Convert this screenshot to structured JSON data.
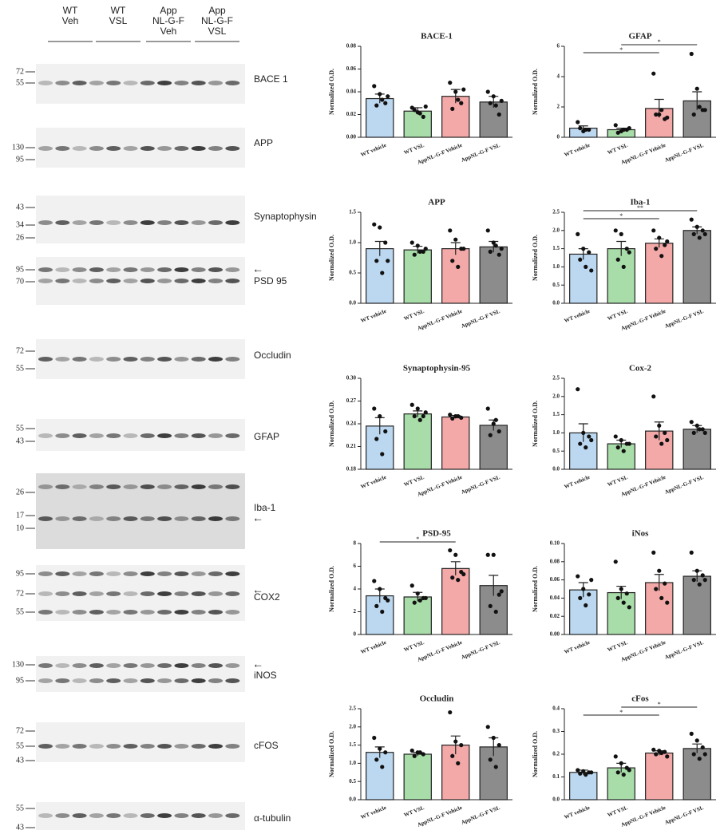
{
  "blots": {
    "groups": [
      {
        "lines": [
          "WT",
          "Veh"
        ]
      },
      {
        "lines": [
          "WT",
          "VSL"
        ]
      },
      {
        "lines": [
          "App",
          "NL-G-F",
          "Veh"
        ]
      },
      {
        "lines": [
          "App",
          "NL-G-F",
          "VSL"
        ]
      }
    ],
    "panels": [
      {
        "label": "BACE 1",
        "markers": [
          "72",
          "55"
        ]
      },
      {
        "label": "APP",
        "markers": [
          "130",
          "95"
        ]
      },
      {
        "label": "Synaptophysin",
        "markers": [
          "43",
          "34",
          "26"
        ]
      },
      {
        "label": "PSD 95",
        "markers": [
          "95",
          "70"
        ]
      },
      {
        "label": "Occludin",
        "markers": [
          "72",
          "55"
        ]
      },
      {
        "label": "GFAP",
        "markers": [
          "55",
          "43"
        ]
      },
      {
        "label": "Iba-1",
        "markers": [
          "26",
          "17",
          "10"
        ]
      },
      {
        "label": "COX2",
        "markers": [
          "95",
          "72",
          "55"
        ]
      },
      {
        "label": "iNOS",
        "markers": [
          "130",
          "95"
        ]
      },
      {
        "label": "cFOS",
        "markers": [
          "72",
          "55",
          "43"
        ]
      },
      {
        "label": "α-tubulin",
        "markers": [
          "55",
          "43"
        ]
      }
    ]
  },
  "chart_data": [
    {
      "type": "bar",
      "title": "BACE-1",
      "y_label": "Normalized O.D.",
      "categories": [
        "WT vehicle",
        "WT VSL",
        "AppNL-G-F Vehicle",
        "AppNL-G-F VSL"
      ],
      "colors": [
        "#bcd8f0",
        "#a8dca8",
        "#f4a9a9",
        "#8c8c8c"
      ],
      "values": [
        0.034,
        0.023,
        0.036,
        0.031
      ],
      "errors": [
        0.004,
        0.003,
        0.006,
        0.005
      ],
      "points": [
        [
          0.045,
          0.038,
          0.03,
          0.028,
          0.033,
          0.036
        ],
        [
          0.026,
          0.022,
          0.018,
          0.024,
          0.021,
          0.027
        ],
        [
          0.048,
          0.04,
          0.03,
          0.025,
          0.033,
          0.042
        ],
        [
          0.04,
          0.036,
          0.02,
          0.03,
          0.028,
          0.032
        ]
      ],
      "ylim": [
        0,
        0.08
      ],
      "yticks": [
        {
          "value": 0,
          "label": "0.00"
        },
        0.02,
        0.04,
        0.06,
        0.08
      ],
      "significance": []
    },
    {
      "type": "bar",
      "title": "GFAP",
      "y_label": "Normalized O.D.",
      "categories": [
        "WT vehicle",
        "WT VSL",
        "AppNL-G-F Vehicle",
        "AppNL-G-F VSL"
      ],
      "colors": [
        "#bcd8f0",
        "#a8dca8",
        "#f4a9a9",
        "#8c8c8c"
      ],
      "values": [
        0.6,
        0.5,
        1.9,
        2.4
      ],
      "errors": [
        0.15,
        0.1,
        0.6,
        0.6
      ],
      "points": [
        [
          1.0,
          0.4,
          0.5,
          0.6,
          0.5
        ],
        [
          0.8,
          0.4,
          0.5,
          0.3,
          0.5,
          0.6
        ],
        [
          4.2,
          1.5,
          1.2,
          1.5,
          1.8,
          1.3
        ],
        [
          5.5,
          3.2,
          1.8,
          1.5,
          2.0,
          1.8
        ]
      ],
      "ylim": [
        0,
        6
      ],
      "yticks": [
        0,
        2,
        4,
        6
      ],
      "significance": [
        {
          "from": 1,
          "to": 3,
          "label": "*"
        },
        {
          "from": 0,
          "to": 2,
          "label": "*"
        }
      ]
    },
    {
      "type": "bar",
      "title": "APP",
      "y_label": "Normalized O.D.",
      "categories": [
        "WT vehicle",
        "WT VSL",
        "AppNL-G-F Vehicle",
        "AppNL-G-F VSL"
      ],
      "colors": [
        "#bcd8f0",
        "#a8dca8",
        "#f4a9a9",
        "#8c8c8c"
      ],
      "values": [
        0.9,
        0.88,
        0.9,
        0.93
      ],
      "errors": [
        0.12,
        0.06,
        0.1,
        0.09
      ],
      "points": [
        [
          1.3,
          1.25,
          1.0,
          0.7,
          0.5,
          0.7
        ],
        [
          1.0,
          0.95,
          0.85,
          0.8,
          0.85,
          0.9
        ],
        [
          1.2,
          1.05,
          0.9,
          0.7,
          0.6,
          0.9
        ],
        [
          1.2,
          1.0,
          0.8,
          0.85,
          0.95,
          0.9
        ]
      ],
      "ylim": [
        0,
        1.5
      ],
      "yticks": [
        {
          "value": 0,
          "label": "0.0"
        },
        0.5,
        {
          "value": 1,
          "label": "1.0"
        },
        1.5
      ],
      "significance": []
    },
    {
      "type": "bar",
      "title": "Iba-1",
      "y_label": "Normalized O.D.",
      "categories": [
        "WT vehicle",
        "WT VSL",
        "AppNL-G-F Vehicle",
        "AppNL-G-F VSL"
      ],
      "colors": [
        "#bcd8f0",
        "#a8dca8",
        "#f4a9a9",
        "#8c8c8c"
      ],
      "values": [
        1.35,
        1.5,
        1.65,
        2.0
      ],
      "errors": [
        0.15,
        0.2,
        0.12,
        0.1
      ],
      "points": [
        [
          1.9,
          1.5,
          1.4,
          1.2,
          1.0,
          0.9
        ],
        [
          2.0,
          1.9,
          1.5,
          1.2,
          1.0,
          1.4
        ],
        [
          2.0,
          1.8,
          1.6,
          1.5,
          1.3,
          1.7
        ],
        [
          2.3,
          2.1,
          2.0,
          1.9,
          1.8,
          1.9
        ]
      ],
      "ylim": [
        0,
        2.5
      ],
      "yticks": [
        {
          "value": 0,
          "label": "0.0"
        },
        0.5,
        {
          "value": 1,
          "label": "1.0"
        },
        1.5,
        {
          "value": 2,
          "label": "2.0"
        },
        2.5
      ],
      "significance": [
        {
          "from": 0,
          "to": 3,
          "label": "**"
        },
        {
          "from": 0,
          "to": 2,
          "label": "*"
        }
      ]
    },
    {
      "type": "bar",
      "title": "Synaptophysin-95",
      "y_label": "Normalized O.D.",
      "categories": [
        "WT vehicle",
        "WT VSL",
        "AppNL-G-F Vehicle",
        "AppNL-G-F VSL"
      ],
      "colors": [
        "#bcd8f0",
        "#a8dca8",
        "#f4a9a9",
        "#8c8c8c"
      ],
      "values": [
        0.237,
        0.253,
        0.249,
        0.238
      ],
      "errors": [
        0.011,
        0.004,
        0.002,
        0.007
      ],
      "points": [
        [
          0.26,
          0.25,
          0.23,
          0.22,
          0.2
        ],
        [
          0.265,
          0.26,
          0.25,
          0.25,
          0.245,
          0.255
        ],
        [
          0.252,
          0.25,
          0.248,
          0.247,
          0.25
        ],
        [
          0.26,
          0.24,
          0.23,
          0.225,
          0.245
        ]
      ],
      "ylim": [
        0.18,
        0.3
      ],
      "yticks": [
        0.18,
        0.21,
        0.24,
        0.27,
        {
          "value": 0.3,
          "label": "0.30"
        }
      ],
      "significance": []
    },
    {
      "type": "bar",
      "title": "Cox-2",
      "y_label": "Normalized O.D.",
      "categories": [
        "WT vehicle",
        "WT VSL",
        "AppNL-G-F Vehicle",
        "AppNL-G-F VSL"
      ],
      "colors": [
        "#bcd8f0",
        "#a8dca8",
        "#f4a9a9",
        "#8c8c8c"
      ],
      "values": [
        1.0,
        0.7,
        1.05,
        1.1
      ],
      "errors": [
        0.25,
        0.1,
        0.25,
        0.1
      ],
      "points": [
        [
          2.2,
          1.0,
          0.9,
          0.7,
          0.6,
          0.8
        ],
        [
          0.9,
          0.8,
          0.7,
          0.6,
          0.5,
          0.7
        ],
        [
          2.0,
          1.2,
          1.0,
          0.9,
          0.7,
          0.8
        ],
        [
          1.3,
          1.2,
          1.1,
          1.0,
          1.1,
          1.0
        ]
      ],
      "ylim": [
        0,
        2.5
      ],
      "yticks": [
        {
          "value": 0,
          "label": "0.0"
        },
        0.5,
        {
          "value": 1,
          "label": "1.0"
        },
        1.5,
        {
          "value": 2,
          "label": "2.0"
        },
        2.5
      ],
      "significance": []
    },
    {
      "type": "bar",
      "title": "PSD-95",
      "y_label": "Normalized O.D.",
      "categories": [
        "WT vehicle",
        "WT VSL",
        "AppNL-G-F Vehicle",
        "AppNL-G-F VSL"
      ],
      "colors": [
        "#bcd8f0",
        "#a8dca8",
        "#f4a9a9",
        "#8c8c8c"
      ],
      "values": [
        3.4,
        3.3,
        5.8,
        4.3
      ],
      "errors": [
        0.6,
        0.4,
        0.6,
        0.9
      ],
      "points": [
        [
          4.7,
          4.0,
          3.2,
          2.5,
          2.0,
          3.0
        ],
        [
          4.3,
          3.6,
          3.2,
          2.8,
          3.0,
          3.2
        ],
        [
          7.4,
          7.0,
          5.5,
          5.0,
          4.8,
          5.3
        ],
        [
          7.0,
          7.0,
          3.5,
          2.5,
          2.0,
          3.8
        ]
      ],
      "ylim": [
        0,
        8
      ],
      "yticks": [
        0,
        2,
        4,
        6,
        8
      ],
      "significance": [
        {
          "from": 0,
          "to": 2,
          "label": "*"
        }
      ]
    },
    {
      "type": "bar",
      "title": "iNos",
      "y_label": "Normalized O.D.",
      "categories": [
        "WT vehicle",
        "WT VSL",
        "AppNL-G-F Vehicle",
        "AppNL-G-F VSL"
      ],
      "colors": [
        "#bcd8f0",
        "#a8dca8",
        "#f4a9a9",
        "#8c8c8c"
      ],
      "values": [
        0.049,
        0.046,
        0.057,
        0.064
      ],
      "errors": [
        0.008,
        0.007,
        0.009,
        0.006
      ],
      "points": [
        [
          0.064,
          0.05,
          0.044,
          0.04,
          0.032,
          0.06
        ],
        [
          0.08,
          0.05,
          0.045,
          0.04,
          0.035,
          0.03
        ],
        [
          0.09,
          0.07,
          0.056,
          0.05,
          0.04,
          0.035
        ],
        [
          0.09,
          0.07,
          0.065,
          0.06,
          0.055,
          0.06
        ]
      ],
      "ylim": [
        0,
        0.1
      ],
      "yticks": [
        {
          "value": 0,
          "label": "0.00"
        },
        0.02,
        0.04,
        0.06,
        0.08,
        {
          "value": 0.1,
          "label": "0.10"
        }
      ],
      "significance": []
    },
    {
      "type": "bar",
      "title": "Occludin",
      "y_label": "Normalized O.D.",
      "categories": [
        "WT vehicle",
        "WT VSL",
        "AppNL-G-F Vehicle",
        "AppNL-G-F VSL"
      ],
      "colors": [
        "#bcd8f0",
        "#a8dca8",
        "#f4a9a9",
        "#8c8c8c"
      ],
      "values": [
        1.3,
        1.25,
        1.5,
        1.45
      ],
      "errors": [
        0.15,
        0.05,
        0.25,
        0.25
      ],
      "points": [
        [
          1.7,
          1.4,
          1.3,
          1.1,
          0.9
        ],
        [
          1.35,
          1.3,
          1.25,
          1.2,
          1.3
        ],
        [
          2.4,
          1.6,
          1.5,
          1.2,
          1.0
        ],
        [
          2.0,
          1.7,
          1.5,
          1.1,
          0.9
        ]
      ],
      "ylim": [
        0,
        2.5
      ],
      "yticks": [
        {
          "value": 0,
          "label": "0.0"
        },
        0.5,
        {
          "value": 1,
          "label": "1.0"
        },
        1.5,
        {
          "value": 2,
          "label": "2.0"
        },
        2.5
      ],
      "significance": []
    },
    {
      "type": "bar",
      "title": "cFos",
      "y_label": "Normalized O.D.",
      "categories": [
        "WT vehicle",
        "WT VSL",
        "AppNL-G-F Vehicle",
        "AppNL-G-F VSL"
      ],
      "colors": [
        "#bcd8f0",
        "#a8dca8",
        "#f4a9a9",
        "#8c8c8c"
      ],
      "values": [
        0.12,
        0.14,
        0.205,
        0.225
      ],
      "errors": [
        0.01,
        0.02,
        0.01,
        0.02
      ],
      "points": [
        [
          0.13,
          0.125,
          0.12,
          0.115,
          0.11,
          0.12
        ],
        [
          0.19,
          0.16,
          0.14,
          0.12,
          0.11,
          0.13
        ],
        [
          0.22,
          0.215,
          0.21,
          0.2,
          0.205,
          0.19
        ],
        [
          0.29,
          0.26,
          0.23,
          0.2,
          0.18,
          0.2
        ]
      ],
      "ylim": [
        0,
        0.4
      ],
      "yticks": [
        {
          "value": 0,
          "label": "0.0"
        },
        0.1,
        0.2,
        0.3,
        0.4
      ],
      "significance": [
        {
          "from": 1,
          "to": 3,
          "label": "*"
        },
        {
          "from": 0,
          "to": 2,
          "label": "*"
        }
      ]
    }
  ]
}
